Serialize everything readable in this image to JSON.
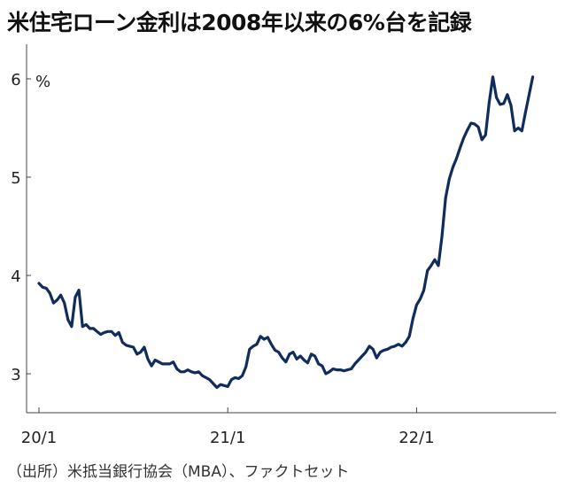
{
  "title": "米住宅ローン金利は2008年以来の6%台を記録",
  "source": "（出所）米抵当銀行協会（MBA）、ファクトセット",
  "chart_data": {
    "type": "line",
    "unit_label": "%",
    "xlabel": "",
    "ylabel": "",
    "y_ticks": [
      3,
      4,
      5,
      6
    ],
    "ylim": [
      2.6,
      6.4
    ],
    "x_ticks": [
      {
        "label": "20/1",
        "week": 0
      },
      {
        "label": "21/1",
        "week": 52
      },
      {
        "label": "22/1",
        "week": 104
      }
    ],
    "grid": false,
    "line_color": "#0f2c5c",
    "series": [
      {
        "values": [
          3.92,
          3.88,
          3.87,
          3.82,
          3.72,
          3.75,
          3.8,
          3.72,
          3.55,
          3.48,
          3.78,
          3.85,
          3.48,
          3.5,
          3.46,
          3.46,
          3.43,
          3.4,
          3.42,
          3.43,
          3.43,
          3.39,
          3.42,
          3.32,
          3.29,
          3.28,
          3.27,
          3.2,
          3.22,
          3.27,
          3.15,
          3.08,
          3.14,
          3.12,
          3.1,
          3.1,
          3.1,
          3.12,
          3.05,
          3.02,
          3.02,
          3.04,
          3.02,
          3.01,
          3.02,
          2.98,
          2.96,
          2.94,
          2.9,
          2.86,
          2.89,
          2.88,
          2.87,
          2.94,
          2.96,
          2.95,
          2.98,
          3.07,
          3.25,
          3.28,
          3.3,
          3.38,
          3.35,
          3.37,
          3.3,
          3.24,
          3.22,
          3.16,
          3.12,
          3.2,
          3.22,
          3.15,
          3.18,
          3.14,
          3.11,
          3.2,
          3.18,
          3.1,
          3.08,
          3.0,
          3.02,
          3.05,
          3.04,
          3.04,
          3.03,
          3.04,
          3.05,
          3.1,
          3.14,
          3.18,
          3.22,
          3.28,
          3.25,
          3.16,
          3.22,
          3.24,
          3.25,
          3.27,
          3.28,
          3.3,
          3.28,
          3.32,
          3.38,
          3.56,
          3.7,
          3.76,
          3.85,
          4.05,
          4.1,
          4.16,
          4.1,
          4.4,
          4.79,
          4.98,
          5.1,
          5.19,
          5.3,
          5.4,
          5.48,
          5.55,
          5.54,
          5.51,
          5.38,
          5.43,
          5.76,
          6.02,
          5.81,
          5.74,
          5.75,
          5.84,
          5.73,
          5.47,
          5.5,
          5.47,
          5.66,
          5.84,
          6.02
        ]
      }
    ]
  }
}
